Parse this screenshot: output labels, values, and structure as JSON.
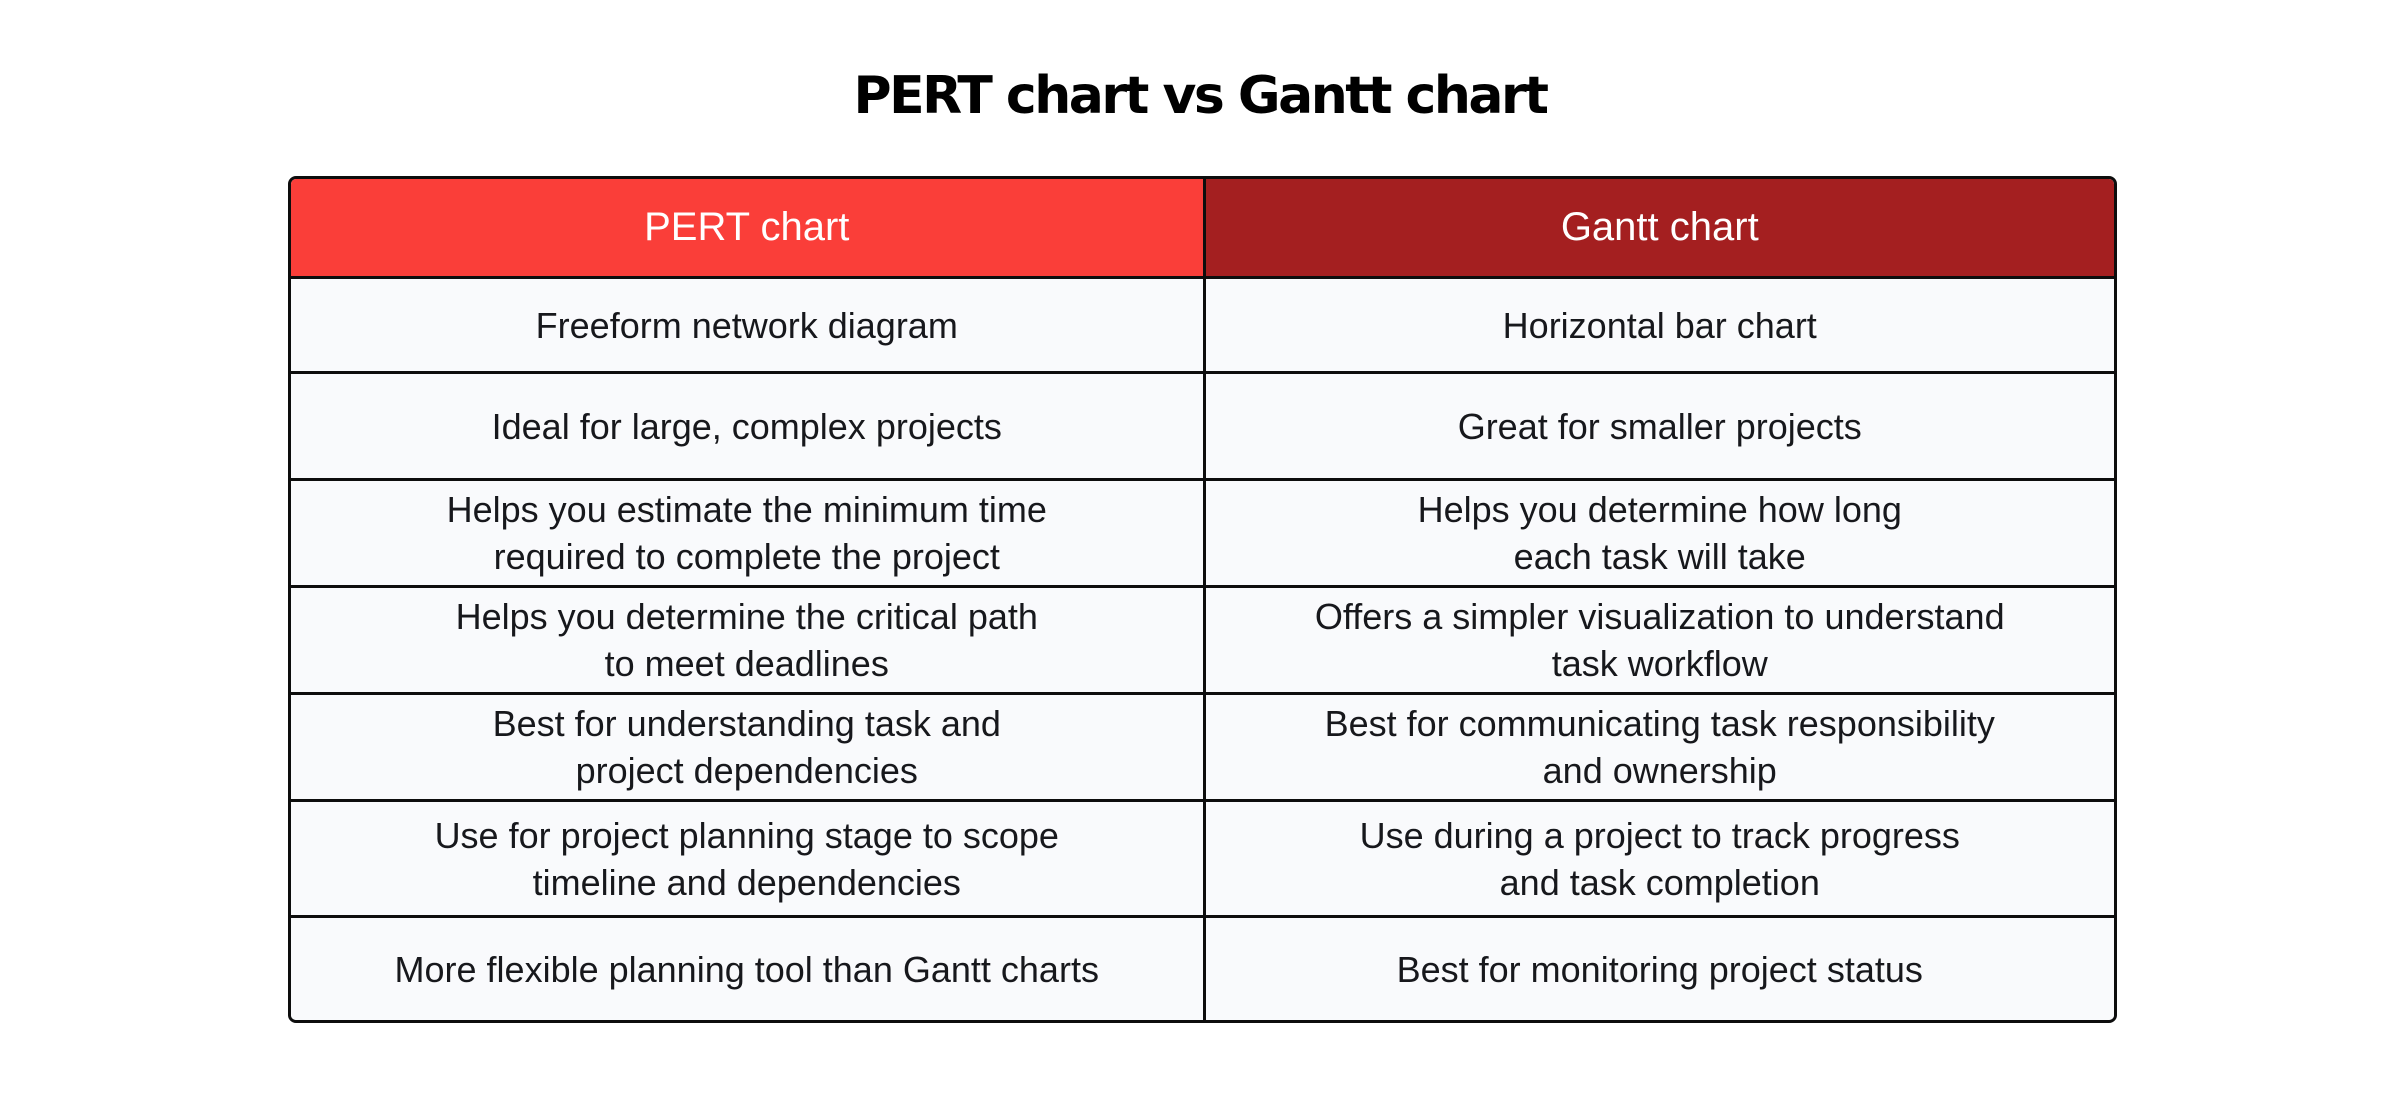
{
  "page": {
    "title": "PERT chart vs Gantt chart"
  },
  "colors": {
    "pert_header_bg": "#FA3E39",
    "gantt_header_bg": "#A41F20",
    "cell_bg": "#F9FAFC",
    "border_color": "#0D0D0D",
    "header_text": "#FFFFFF",
    "body_text": "#17181C",
    "page_bg": "#FFFFFF",
    "title_color": "#000000"
  },
  "table": {
    "columns": [
      {
        "label": "PERT chart"
      },
      {
        "label": "Gantt chart"
      }
    ],
    "rows": [
      {
        "pert": "Freeform network diagram",
        "gantt": "Horizontal bar chart"
      },
      {
        "pert": "Ideal for large, complex projects",
        "gantt": "Great for smaller projects"
      },
      {
        "pert": "Helps you estimate the minimum time\nrequired to complete the project",
        "gantt": "Helps you determine how long\neach task will take"
      },
      {
        "pert": "Helps you determine the critical path\nto meet deadlines",
        "gantt": "Offers a simpler visualization to understand\ntask workflow"
      },
      {
        "pert": "Best for understanding task and\nproject dependencies",
        "gantt": "Best for communicating task responsibility\nand ownership"
      },
      {
        "pert": "Use for project planning stage to scope\ntimeline and dependencies",
        "gantt": "Use during a project to track progress\nand task completion"
      },
      {
        "pert": "More flexible planning tool than Gantt charts",
        "gantt": "Best for monitoring project status"
      }
    ]
  }
}
